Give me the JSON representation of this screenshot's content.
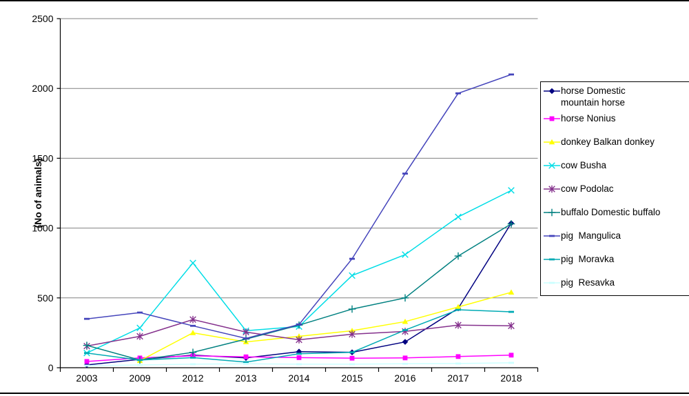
{
  "chart_data": {
    "type": "line",
    "title": "",
    "xlabel": "",
    "ylabel": "(No of animals)",
    "categories": [
      "2003",
      "2009",
      "2012",
      "2013",
      "2014",
      "2015",
      "2016",
      "2017",
      "2018"
    ],
    "ylim": [
      0,
      2500
    ],
    "y_ticks": [
      0,
      500,
      1000,
      1500,
      2000,
      2500
    ],
    "grid": true,
    "legend_position": "right",
    "axis_color": "#000000",
    "grid_color": "#808080",
    "series": [
      {
        "name": "horse Domestic\nmountain horse",
        "legend_two_line": true,
        "color": "#000080",
        "marker": "diamond",
        "values": [
          20,
          60,
          90,
          70,
          115,
          110,
          185,
          425,
          1035
        ]
      },
      {
        "name": "horse Nonius",
        "color": "#FF00FF",
        "marker": "square",
        "values": [
          45,
          70,
          85,
          78,
          72,
          68,
          70,
          80,
          90
        ]
      },
      {
        "name": "donkey Balkan donkey",
        "color": "#FFFF00",
        "marker": "triangle",
        "values": [
          null,
          50,
          250,
          185,
          225,
          265,
          330,
          435,
          540
        ]
      },
      {
        "name": "cow Busha",
        "color": "#00DDE6",
        "marker": "x",
        "values": [
          105,
          285,
          750,
          265,
          295,
          660,
          810,
          1080,
          1270
        ]
      },
      {
        "name": "cow Podolac",
        "color": "#84308C",
        "marker": "star",
        "values": [
          155,
          225,
          345,
          255,
          200,
          240,
          260,
          305,
          300
        ]
      },
      {
        "name": "buffalo Domestic buffalo",
        "color": "#008080",
        "marker": "plus",
        "values": [
          160,
          55,
          110,
          205,
          305,
          420,
          500,
          800,
          1030
        ]
      },
      {
        "name": "pig  Mangulica",
        "color": "#4444BB",
        "marker": "dash",
        "values": [
          350,
          395,
          300,
          210,
          310,
          780,
          1390,
          1965,
          2100
        ]
      },
      {
        "name": "pig  Moravka",
        "color": "#00AAB4",
        "marker": "dash",
        "values": [
          105,
          55,
          72,
          40,
          100,
          110,
          270,
          415,
          400
        ]
      },
      {
        "name": "pig  Resavka",
        "color": "#CCFFFF",
        "marker": "dash",
        "values": [
          15,
          20,
          25,
          28,
          25,
          25,
          28,
          30,
          35
        ]
      }
    ]
  }
}
